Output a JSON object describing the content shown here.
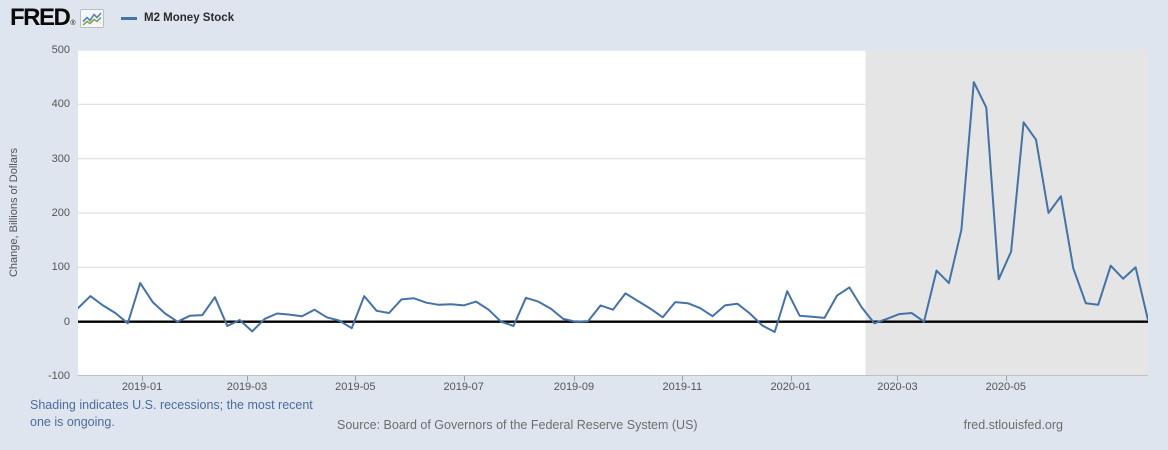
{
  "header": {
    "logo_text": "FRED",
    "logo_registered": "®",
    "legend": {
      "series_label": "M2 Money Stock"
    }
  },
  "colors": {
    "background": "#dfe5ee",
    "plot_background": "#ffffff",
    "grid": "#d9d9d9",
    "zero_line": "#000000",
    "series_line": "#4572a7",
    "recession_band": "#e5e5e5",
    "tick_text": "#555555",
    "note_link": "#4a6d9e",
    "footer_text": "#6d6d6d"
  },
  "chart_data": {
    "type": "line",
    "title": "",
    "ylabel": "Change, Billions of Dollars",
    "ylim": [
      -100,
      500
    ],
    "y_ticks": [
      -100,
      0,
      100,
      200,
      300,
      400,
      500
    ],
    "x_ticks": [
      {
        "label": "2019-01",
        "date": "2019-01-01"
      },
      {
        "label": "2019-03",
        "date": "2019-03-01"
      },
      {
        "label": "2019-05",
        "date": "2019-05-01"
      },
      {
        "label": "2019-07",
        "date": "2019-07-01"
      },
      {
        "label": "2019-09",
        "date": "2019-09-01"
      },
      {
        "label": "2019-11",
        "date": "2019-11-01"
      },
      {
        "label": "2020-01",
        "date": "2020-01-01"
      },
      {
        "label": "2020-03",
        "date": "2020-03-01"
      },
      {
        "label": "2020-05",
        "date": "2020-05-01"
      }
    ],
    "x_range": {
      "start": "2018-11-26",
      "end": "2020-07-20"
    },
    "frequency": "weekly",
    "grid": "horizontal",
    "zero_line": true,
    "legend_position": "top-left",
    "recession_band": {
      "start": "2020-02-12",
      "end": "2020-07-20",
      "color": "#e5e5e5"
    },
    "series": [
      {
        "name": "M2 Money Stock",
        "color": "#4572a7",
        "units": "Change, Billions of Dollars",
        "values": [
          25,
          47,
          30,
          16,
          -3,
          71,
          36,
          15,
          0,
          11,
          12,
          45,
          -8,
          3,
          -18,
          5,
          15,
          13,
          10,
          22,
          8,
          2,
          -12,
          47,
          20,
          16,
          41,
          43,
          35,
          31,
          32,
          30,
          37,
          22,
          0,
          -8,
          44,
          37,
          24,
          5,
          0,
          1,
          30,
          22,
          52,
          38,
          24,
          8,
          36,
          34,
          25,
          10,
          30,
          33,
          15,
          -7,
          -19,
          56,
          11,
          9,
          7,
          48,
          63,
          26,
          -3,
          5,
          14,
          16,
          0,
          94,
          71,
          169,
          441,
          394,
          78,
          129,
          367,
          335,
          200,
          231,
          98,
          34,
          31,
          103,
          79,
          100,
          3
        ]
      }
    ]
  },
  "footer": {
    "note": "Shading indicates U.S. recessions; the most recent one is ongoing.",
    "source": "Source: Board of Governors of the Federal Reserve System (US)",
    "site_link": "fred.stlouisfed.org"
  }
}
